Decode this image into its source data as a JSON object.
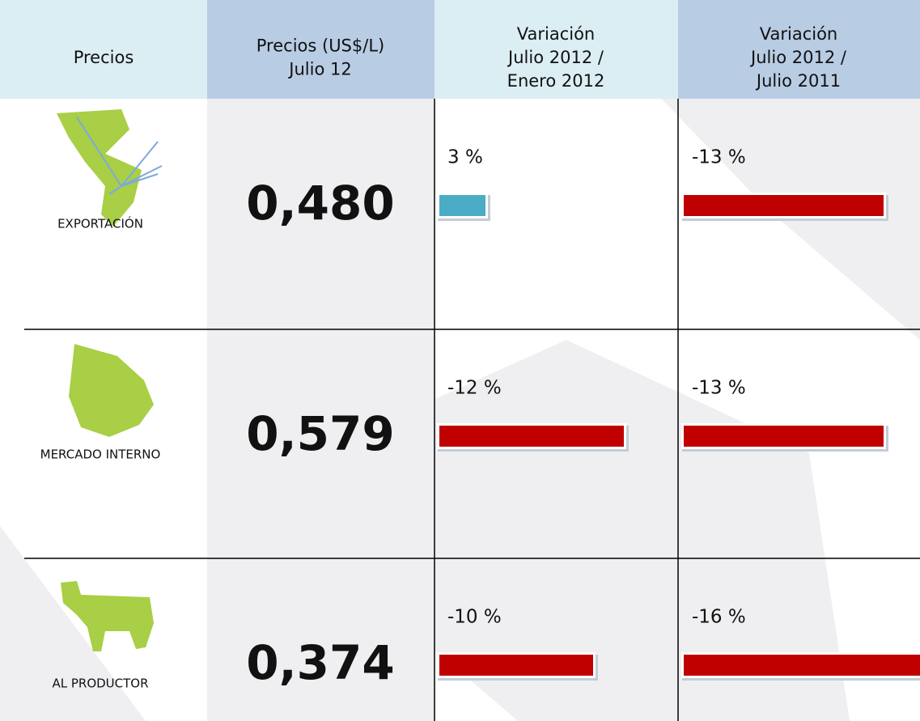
{
  "table": {
    "header": [
      {
        "lines": [
          "Precios"
        ]
      },
      {
        "lines": [
          "Precios (US$/L)",
          "Julio 12"
        ]
      },
      {
        "lines": [
          "Variación",
          "Julio 2012 /",
          "Enero 2012"
        ]
      },
      {
        "lines": [
          "Variación",
          "Julio 2012 /",
          "Julio 2011"
        ]
      }
    ],
    "rows": [
      {
        "label": "EXPORTACIÓN",
        "price": "0,480",
        "variations": [
          {
            "value": 3,
            "label": "3 %",
            "color": "#4bacc6"
          },
          {
            "value": -13,
            "label": "-13 %",
            "color": "#c00000"
          }
        ]
      },
      {
        "label": "MERCADO INTERNO",
        "price": "0,579",
        "variations": [
          {
            "value": -12,
            "label": "-12 %",
            "color": "#c00000"
          },
          {
            "value": -13,
            "label": "-13 %",
            "color": "#c00000"
          }
        ]
      },
      {
        "label": "AL PRODUCTOR",
        "price": "0,374",
        "variations": [
          {
            "value": -10,
            "label": "-10 %",
            "color": "#c00000"
          },
          {
            "value": -16,
            "label": "-16 %",
            "color": "#c00000"
          }
        ]
      }
    ]
  }
}
